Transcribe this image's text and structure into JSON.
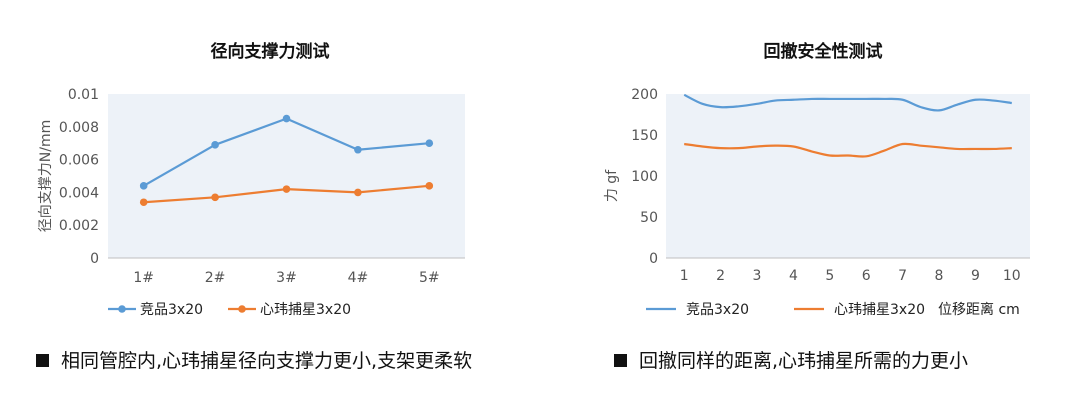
{
  "chart_data": [
    {
      "type": "line",
      "title": "径向支撑力测试",
      "ylabel": "径向支撑力N/mm",
      "xlabel": "",
      "categories": [
        "1#",
        "2#",
        "3#",
        "4#",
        "5#"
      ],
      "yticks": [
        "0.01",
        "0.008",
        "0.006",
        "0.004",
        "0.002",
        "0"
      ],
      "ylim": [
        0,
        0.01
      ],
      "markers": true,
      "grid": false,
      "legend_position": "bottom",
      "plot_background": "#edf2f8",
      "series": [
        {
          "name": "竞品3x20",
          "color": "#5b9bd5",
          "values": [
            0.0044,
            0.0069,
            0.0085,
            0.0066,
            0.007
          ]
        },
        {
          "name": "心玮捕星3x20",
          "color": "#ed7d31",
          "values": [
            0.0034,
            0.0037,
            0.0042,
            0.004,
            0.0044
          ]
        }
      ]
    },
    {
      "type": "line",
      "title": "回撤安全性测试",
      "ylabel": "力 gf",
      "xlabel": "位移距离 cm",
      "x": [
        1,
        1.5,
        2,
        2.5,
        3,
        3.5,
        4,
        4.5,
        5,
        5.5,
        6,
        6.5,
        7,
        7.5,
        8,
        8.5,
        9,
        9.5,
        10
      ],
      "xticks": [
        "1",
        "2",
        "3",
        "4",
        "5",
        "6",
        "7",
        "8",
        "9",
        "10"
      ],
      "yticks": [
        "200",
        "150",
        "100",
        "50",
        "0"
      ],
      "ylim": [
        0,
        200
      ],
      "markers": false,
      "grid": false,
      "legend_position": "bottom",
      "plot_background": "#edf2f8",
      "series": [
        {
          "name": "竞品3x20",
          "color": "#5b9bd5",
          "values": [
            199,
            188,
            184,
            185,
            188,
            192,
            193,
            194,
            194,
            194,
            194,
            194,
            193,
            184,
            180,
            187,
            193,
            192,
            189
          ]
        },
        {
          "name": "心玮捕星3x20",
          "color": "#ed7d31",
          "values": [
            139,
            136,
            134,
            134,
            136,
            137,
            136,
            130,
            125,
            125,
            124,
            131,
            139,
            137,
            135,
            133,
            133,
            133,
            134
          ]
        }
      ]
    }
  ],
  "captions": {
    "left": "相同管腔内,心玮捕星径向支撑力更小,支架更柔软",
    "right": "回撤同样的距离,心玮捕星所需的力更小"
  }
}
